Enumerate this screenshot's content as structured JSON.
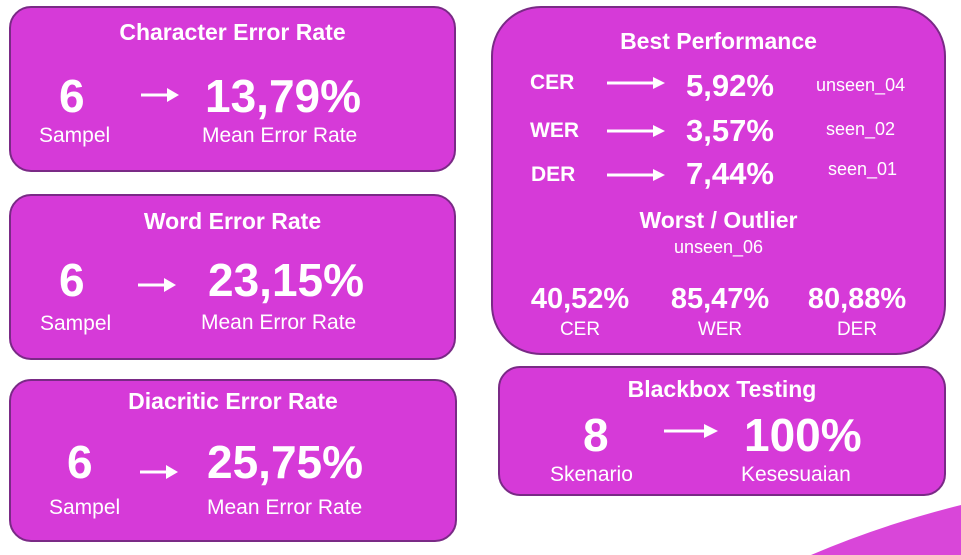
{
  "cards": [
    {
      "title": "Character Error Rate",
      "count": "6",
      "count_label": "Sampel",
      "value": "13,79%",
      "value_label": "Mean Error Rate"
    },
    {
      "title": "Word Error Rate",
      "count": "6",
      "count_label": "Sampel",
      "value": "23,15%",
      "value_label": "Mean Error Rate"
    },
    {
      "title": "Diacritic Error Rate",
      "count": "6",
      "count_label": "Sampel",
      "value": "25,75%",
      "value_label": "Mean Error Rate"
    }
  ],
  "best": {
    "title": "Best Performance",
    "rows": [
      {
        "metric": "CER",
        "value": "5,92%",
        "sample": "unseen_04"
      },
      {
        "metric": "WER",
        "value": "3,57%",
        "sample": "seen_02"
      },
      {
        "metric": "DER",
        "value": "7,44%",
        "sample": "seen_01"
      }
    ],
    "worst_title": "Worst / Outlier",
    "worst_sample": "unseen_06",
    "worst": [
      {
        "value": "40,52%",
        "metric": "CER"
      },
      {
        "value": "85,47%",
        "metric": "WER"
      },
      {
        "value": "80,88%",
        "metric": "DER"
      }
    ]
  },
  "blackbox": {
    "title": "Blackbox Testing",
    "count": "8",
    "count_label": "Skenario",
    "value": "100%",
    "value_label": "Kesesuaian"
  },
  "colors": {
    "card": "#d63ad8",
    "border": "#7a2a86",
    "text": "#ffffff",
    "accent": "#d946d9"
  }
}
